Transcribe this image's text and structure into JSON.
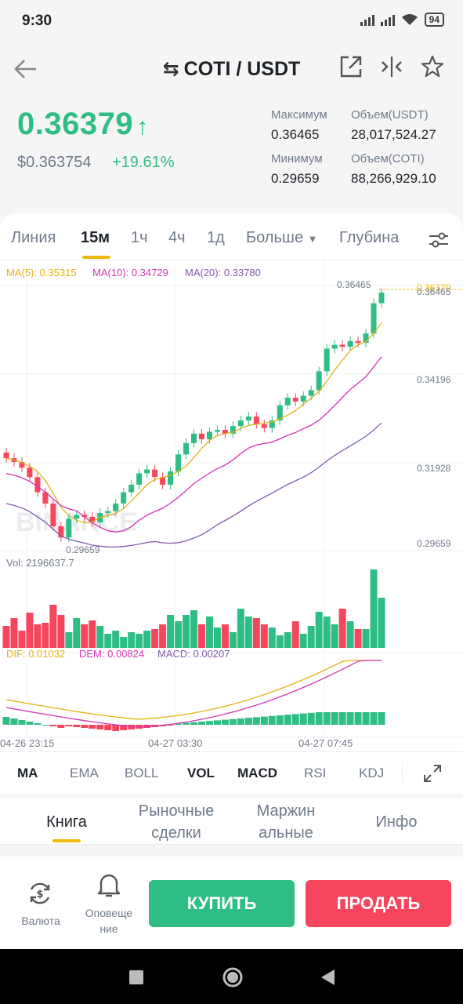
{
  "status_bar": {
    "time": "9:30",
    "battery": "94"
  },
  "header": {
    "pair": "COTI / USDT",
    "icons": [
      "back-arrow-icon",
      "swap-icon",
      "external-link-icon",
      "compare-icon",
      "star-icon"
    ]
  },
  "ticker": {
    "last_price": "0.36379",
    "usd_price": "$0.363754",
    "change": "+19.61%",
    "high_label": "Максимум",
    "high": "0.36465",
    "low_label": "Минимум",
    "low": "0.29659",
    "vol_usdt_label": "Объем(USDT)",
    "vol_usdt": "28,017,524.27",
    "vol_coti_label": "Объем(COTI)",
    "vol_coti": "88,266,929.10"
  },
  "intervals": {
    "line": "Линия",
    "m15": "15м",
    "h1": "1ч",
    "h4": "4ч",
    "d1": "1д",
    "more": "Больше",
    "depth": "Глубина"
  },
  "chart": {
    "ma5": "MA(5): 0.35315",
    "ma10": "MA(10): 0.34729",
    "ma20": "MA(20): 0.33780",
    "price_labels": [
      "0.36465",
      "0.34196",
      "0.31928",
      "0.29659"
    ],
    "current_price": "0.36379",
    "high_marker": "0.36465",
    "low_marker": "0.29659",
    "vol_label": "Vol: 2196637.7",
    "dif": "DIF: 0.01032",
    "dem": "DEM: 0.00824",
    "macd": "MACD: 0.00207",
    "time_labels": [
      "04-26 23:15",
      "04-27 03:30",
      "04-27 07:45"
    ],
    "watermark": "BINANCE",
    "colors": {
      "up": "#2ebd85",
      "down": "#f6465d",
      "ma5": "#e3b216",
      "ma10": "#d236b5",
      "ma20": "#8459a8"
    }
  },
  "indicators": {
    "ma": "MA",
    "ema": "EMA",
    "boll": "BOLL",
    "vol": "VOL",
    "macd": "MACD",
    "rsi": "RSI",
    "kdj": "KDJ"
  },
  "bottom_tabs": {
    "book": "Книга",
    "trades_1": "Рыночные",
    "trades_2": "сделки",
    "margin_1": "Маржин",
    "margin_2": "альные",
    "info": "Инфо"
  },
  "actions": {
    "currency": "Валюта",
    "alerts_1": "Оповеще",
    "alerts_2": "ние",
    "buy": "КУПИТЬ",
    "sell": "ПРОДАТЬ"
  }
}
